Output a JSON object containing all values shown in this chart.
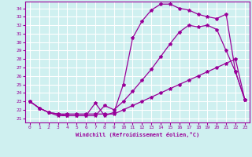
{
  "xlabel": "Windchill (Refroidissement éolien,°C)",
  "bg_color": "#cff0f0",
  "grid_color": "#ffffff",
  "line_color": "#990099",
  "xlim": [
    -0.5,
    23.5
  ],
  "ylim": [
    20.5,
    34.8
  ],
  "xticks": [
    0,
    1,
    2,
    3,
    4,
    5,
    6,
    7,
    8,
    9,
    10,
    11,
    12,
    13,
    14,
    15,
    16,
    17,
    18,
    19,
    20,
    21,
    22,
    23
  ],
  "yticks": [
    21,
    22,
    23,
    24,
    25,
    26,
    27,
    28,
    29,
    30,
    31,
    32,
    33,
    34
  ],
  "line1_x": [
    0,
    1,
    2,
    3,
    4,
    5,
    6,
    7,
    8,
    9,
    10,
    11,
    12,
    13,
    14,
    15,
    16,
    17,
    18,
    19,
    20,
    21,
    22,
    23
  ],
  "line1_y": [
    23.0,
    22.2,
    21.7,
    21.5,
    21.5,
    21.5,
    21.5,
    21.5,
    21.5,
    21.5,
    22.0,
    22.5,
    23.0,
    23.5,
    24.0,
    24.5,
    25.0,
    25.5,
    26.0,
    26.5,
    27.0,
    27.5,
    28.0,
    23.2
  ],
  "line2_x": [
    0,
    1,
    2,
    3,
    4,
    5,
    6,
    7,
    8,
    9,
    10,
    11,
    12,
    13,
    14,
    15,
    16,
    17,
    18,
    19,
    20,
    21,
    22,
    23
  ],
  "line2_y": [
    23.0,
    22.2,
    21.7,
    21.3,
    21.3,
    21.3,
    21.3,
    21.3,
    22.5,
    22.0,
    23.0,
    24.2,
    25.5,
    26.8,
    28.3,
    29.8,
    31.2,
    32.0,
    31.8,
    32.0,
    31.5,
    29.0,
    26.5,
    23.2
  ],
  "line3_x": [
    0,
    1,
    2,
    3,
    4,
    5,
    6,
    7,
    8,
    9,
    10,
    11,
    12,
    13,
    14,
    15,
    16,
    17,
    18,
    19,
    20,
    21,
    22,
    23
  ],
  "line3_y": [
    23.0,
    22.2,
    21.7,
    21.5,
    21.3,
    21.3,
    21.3,
    22.8,
    21.3,
    21.7,
    25.0,
    30.5,
    32.5,
    33.8,
    34.5,
    34.5,
    34.0,
    33.8,
    33.3,
    33.0,
    32.8,
    33.3,
    26.5,
    23.2
  ],
  "marker": "*",
  "markersize": 3,
  "linewidth": 0.9
}
